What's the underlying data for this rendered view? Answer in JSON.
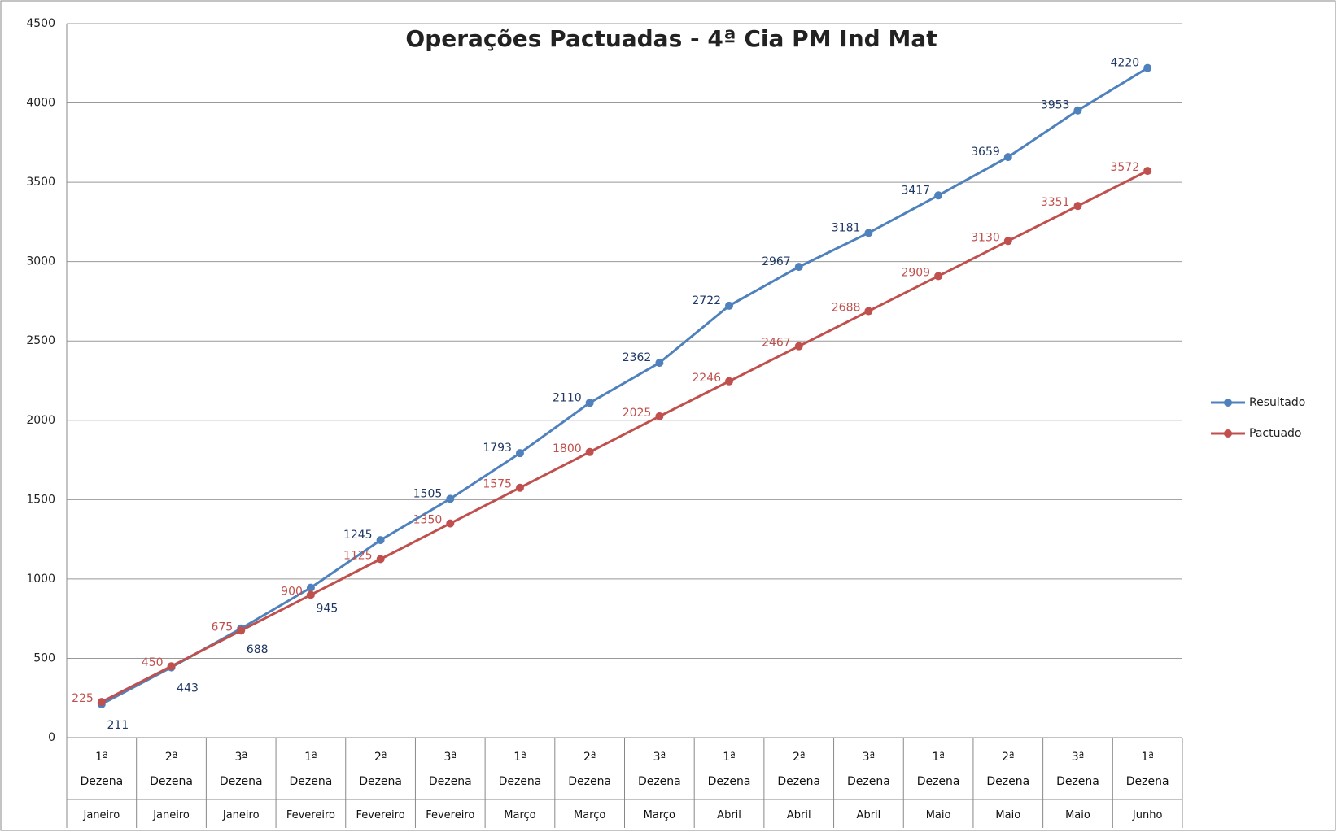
{
  "chart_data": {
    "type": "line",
    "title": "Operações Pactuadas - 4ª Cia PM Ind Mat",
    "categories": [
      "1ª Dezena",
      "2ª Dezena",
      "3ª Dezena",
      "1ª Dezena",
      "2ª Dezena",
      "3ª Dezena",
      "1ª Dezena",
      "2ª Dezena",
      "3ª Dezena",
      "1ª Dezena",
      "2ª Dezena",
      "3ª Dezena",
      "1ª Dezena",
      "2ª Dezena",
      "3ª Dezena",
      "1ª Dezena"
    ],
    "category_groups": [
      "Janeiro",
      "Janeiro",
      "Janeiro",
      "Fevereiro",
      "Fevereiro",
      "Fevereiro",
      "Março",
      "Março",
      "Março",
      "Abril",
      "Abril",
      "Abril",
      "Maio",
      "Maio",
      "Maio",
      "Junho"
    ],
    "series": [
      {
        "name": "Resultado",
        "color": "#4f81bd",
        "values": [
          211,
          443,
          688,
          945,
          1245,
          1505,
          1793,
          2110,
          2362,
          2722,
          2967,
          3181,
          3417,
          3659,
          3953,
          4220
        ]
      },
      {
        "name": "Pactuado",
        "color": "#c0504d",
        "values": [
          225,
          450,
          675,
          900,
          1125,
          1350,
          1575,
          1800,
          2025,
          2246,
          2467,
          2688,
          2909,
          3130,
          3351,
          3572
        ]
      }
    ],
    "ylim": [
      0,
      4500
    ],
    "yticks": [
      0,
      500,
      1000,
      1500,
      2000,
      2500,
      3000,
      3500,
      4000,
      4500
    ],
    "grid": true,
    "legend": "right"
  }
}
